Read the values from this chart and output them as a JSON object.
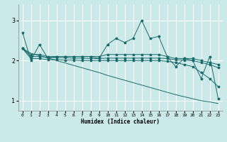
{
  "xlabel": "Humidex (Indice chaleur)",
  "bg_color": "#cce9e9",
  "grid_color": "#ffffff",
  "line_color": "#1a6b6b",
  "x_values": [
    0,
    1,
    2,
    3,
    4,
    5,
    6,
    7,
    8,
    9,
    10,
    11,
    12,
    13,
    14,
    15,
    16,
    17,
    18,
    19,
    20,
    21,
    22,
    23
  ],
  "line_jagged": [
    2.7,
    2.0,
    2.4,
    2.05,
    2.1,
    2.1,
    2.1,
    2.1,
    2.1,
    2.05,
    2.4,
    2.55,
    2.45,
    2.55,
    3.0,
    2.55,
    2.6,
    2.1,
    1.85,
    2.05,
    2.0,
    1.55,
    2.1,
    1.05
  ],
  "line_upper_flat": [
    2.3,
    2.15,
    2.15,
    2.1,
    2.1,
    2.1,
    2.1,
    2.1,
    2.1,
    2.1,
    2.15,
    2.15,
    2.15,
    2.15,
    2.15,
    2.15,
    2.15,
    2.1,
    2.05,
    2.05,
    2.05,
    2.0,
    1.95,
    1.9
  ],
  "line_mid_flat": [
    2.3,
    2.1,
    2.1,
    2.08,
    2.07,
    2.07,
    2.06,
    2.06,
    2.05,
    2.05,
    2.06,
    2.06,
    2.06,
    2.06,
    2.06,
    2.06,
    2.06,
    2.05,
    2.02,
    2.01,
    2.0,
    1.95,
    1.9,
    1.82
  ],
  "line_lower_flat": [
    2.3,
    2.05,
    2.05,
    2.02,
    2.02,
    2.01,
    2.01,
    2.0,
    2.0,
    2.0,
    2.0,
    2.0,
    2.0,
    2.0,
    2.0,
    2.0,
    2.0,
    1.98,
    1.95,
    1.9,
    1.85,
    1.7,
    1.55,
    1.35
  ],
  "line_diagonal": [
    2.3,
    2.18,
    2.12,
    2.06,
    2.0,
    1.94,
    1.88,
    1.82,
    1.76,
    1.7,
    1.63,
    1.57,
    1.51,
    1.45,
    1.39,
    1.33,
    1.27,
    1.21,
    1.15,
    1.1,
    1.05,
    1.0,
    0.97,
    0.93
  ],
  "yticks": [
    1,
    2,
    3
  ],
  "ylim": [
    0.75,
    3.4
  ],
  "xlim": [
    -0.5,
    23.5
  ],
  "figsize": [
    3.2,
    2.0
  ],
  "dpi": 100
}
